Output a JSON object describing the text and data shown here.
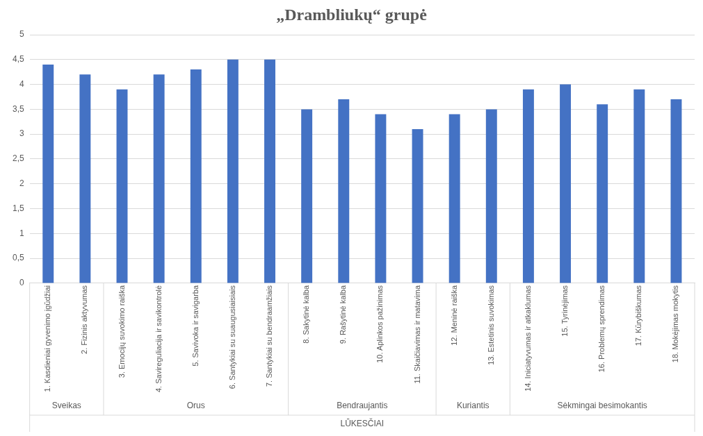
{
  "chart_data": {
    "type": "bar",
    "title": "„Drambliukų“ grupė",
    "xlabel": "LŪKESČIAI",
    "categories": [
      "1. Kasdieniai gyvenimo įgūdžiai",
      "2. Fizinis aktyvumas",
      "3. Emocijų suvokimo raiška",
      "4. Savireguliacija ir savikontrolė",
      "5. Savivoka ir savigarba",
      "6. Santykiai su suaugusiaisiais",
      "7. Santykiai su bendraamžiais",
      "8. Sakytinė kalba",
      "9. Rašytinė kalba",
      "10. Aplinkos pažinimas",
      "11. Skaičiavimas ir matavima",
      "12. Meninė raiška",
      "13. Estetinis suvokimas",
      "14. Iniciatyvumas ir atkaklumas",
      "15. Tyrinėjimas",
      "16. Problemų sprendimas",
      "17. Kūrybiškumas",
      "18. Mokėjimas mokytis"
    ],
    "values": [
      4.4,
      4.2,
      3.9,
      4.2,
      4.3,
      4.5,
      4.5,
      3.5,
      3.7,
      3.4,
      3.1,
      3.4,
      3.5,
      3.9,
      4.0,
      3.6,
      3.9,
      3.7
    ],
    "color": "#4472c4",
    "ylim": [
      0,
      5
    ],
    "yticks": [
      0,
      {
        "value": 0.5,
        "label": "0,5"
      },
      1,
      {
        "value": 1.5,
        "label": "1,5"
      },
      2,
      {
        "value": 2.5,
        "label": "2,5"
      },
      3,
      {
        "value": 3.5,
        "label": "3,5"
      },
      4,
      {
        "value": 4.5,
        "label": "4,5"
      },
      5
    ],
    "grid": "y",
    "annotations": [
      "Sveikas",
      "Orus",
      "Bendraujantis",
      "Kuriantis",
      "Sėkmingai besimokantis"
    ]
  }
}
